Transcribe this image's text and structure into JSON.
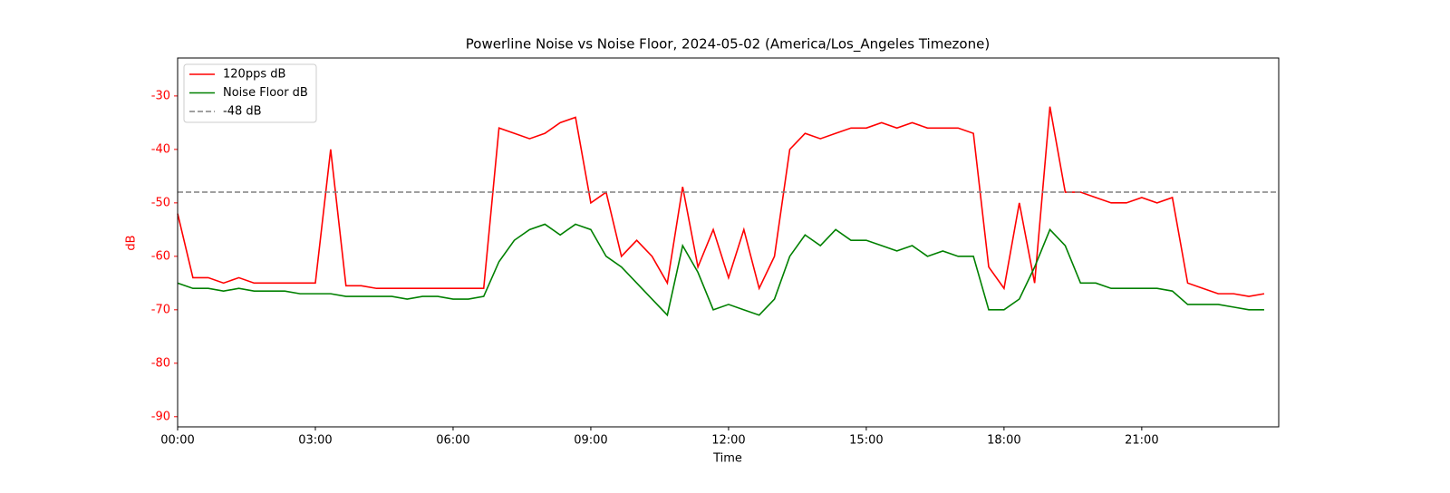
{
  "chart_data": {
    "type": "line",
    "title": "Powerline Noise vs Noise Floor, 2024-05-02 (America/Los_Angeles Timezone)",
    "xlabel": "Time",
    "ylabel": "dB",
    "x": [
      "00:00",
      "00:20",
      "00:40",
      "01:00",
      "01:20",
      "01:40",
      "02:00",
      "02:20",
      "02:40",
      "03:00",
      "03:20",
      "03:40",
      "04:00",
      "04:20",
      "04:40",
      "05:00",
      "05:20",
      "05:40",
      "06:00",
      "06:20",
      "06:40",
      "07:00",
      "07:20",
      "07:40",
      "08:00",
      "08:20",
      "08:40",
      "09:00",
      "09:20",
      "09:40",
      "10:00",
      "10:20",
      "10:40",
      "11:00",
      "11:20",
      "11:40",
      "12:00",
      "12:20",
      "12:40",
      "13:00",
      "13:20",
      "13:40",
      "14:00",
      "14:20",
      "14:40",
      "15:00",
      "15:20",
      "15:40",
      "16:00",
      "16:20",
      "16:40",
      "17:00",
      "17:20",
      "17:40",
      "18:00",
      "18:20",
      "18:40",
      "19:00",
      "19:20",
      "19:40",
      "20:00",
      "20:20",
      "20:40",
      "21:00",
      "21:20",
      "21:40",
      "22:00",
      "22:20",
      "22:40",
      "23:00",
      "23:20",
      "23:40"
    ],
    "series": [
      {
        "name": "120pps dB",
        "color": "#ff0000",
        "values": [
          -52,
          -64,
          -64,
          -65,
          -64,
          -65,
          -65,
          -65,
          -65,
          -65,
          -40,
          -65.5,
          -65.5,
          -66,
          -66,
          -66,
          -66,
          -66,
          -66,
          -66,
          -66,
          -36,
          -37,
          -38,
          -37,
          -35,
          -34,
          -50,
          -48,
          -60,
          -57,
          -60,
          -65,
          -47,
          -62,
          -55,
          -64,
          -55,
          -66,
          -60,
          -40,
          -37,
          -38,
          -37,
          -36,
          -36,
          -35,
          -36,
          -35,
          -36,
          -36,
          -36,
          -37,
          -62,
          -66,
          -50,
          -65,
          -32,
          -48,
          -48,
          -49,
          -50,
          -50,
          -49,
          -50,
          -49,
          -65,
          -66,
          -67,
          -67,
          -67.5,
          -67
        ]
      },
      {
        "name": "Noise Floor dB",
        "color": "#008000",
        "values": [
          -65,
          -66,
          -66,
          -66.5,
          -66,
          -66.5,
          -66.5,
          -66.5,
          -67,
          -67,
          -67,
          -67.5,
          -67.5,
          -67.5,
          -67.5,
          -68,
          -67.5,
          -67.5,
          -68,
          -68,
          -67.5,
          -61,
          -57,
          -55,
          -54,
          -56,
          -54,
          -55,
          -60,
          -62,
          -65,
          -68,
          -71,
          -58,
          -63,
          -70,
          -69,
          -70,
          -71,
          -68,
          -60,
          -56,
          -58,
          -55,
          -57,
          -57,
          -58,
          -59,
          -58,
          -60,
          -59,
          -60,
          -60,
          -70,
          -70,
          -68,
          -62,
          -55,
          -58,
          -65,
          -65,
          -66,
          -66,
          -66,
          -66,
          -66.5,
          -69,
          -69,
          -69,
          -69.5,
          -70,
          -70
        ]
      }
    ],
    "reference_line": {
      "value": -48,
      "label": "-48 dB",
      "color": "#808080"
    },
    "xlim": [
      "00:00",
      "23:59"
    ],
    "xticks": [
      "00:00",
      "03:00",
      "06:00",
      "09:00",
      "12:00",
      "15:00",
      "18:00",
      "21:00"
    ],
    "ylim": [
      -91.9,
      -22.9
    ],
    "yticks": [
      -90,
      -80,
      -70,
      -60,
      -50,
      -40,
      -30
    ],
    "ytick_color": "#ff0000",
    "legend": "upper left"
  }
}
